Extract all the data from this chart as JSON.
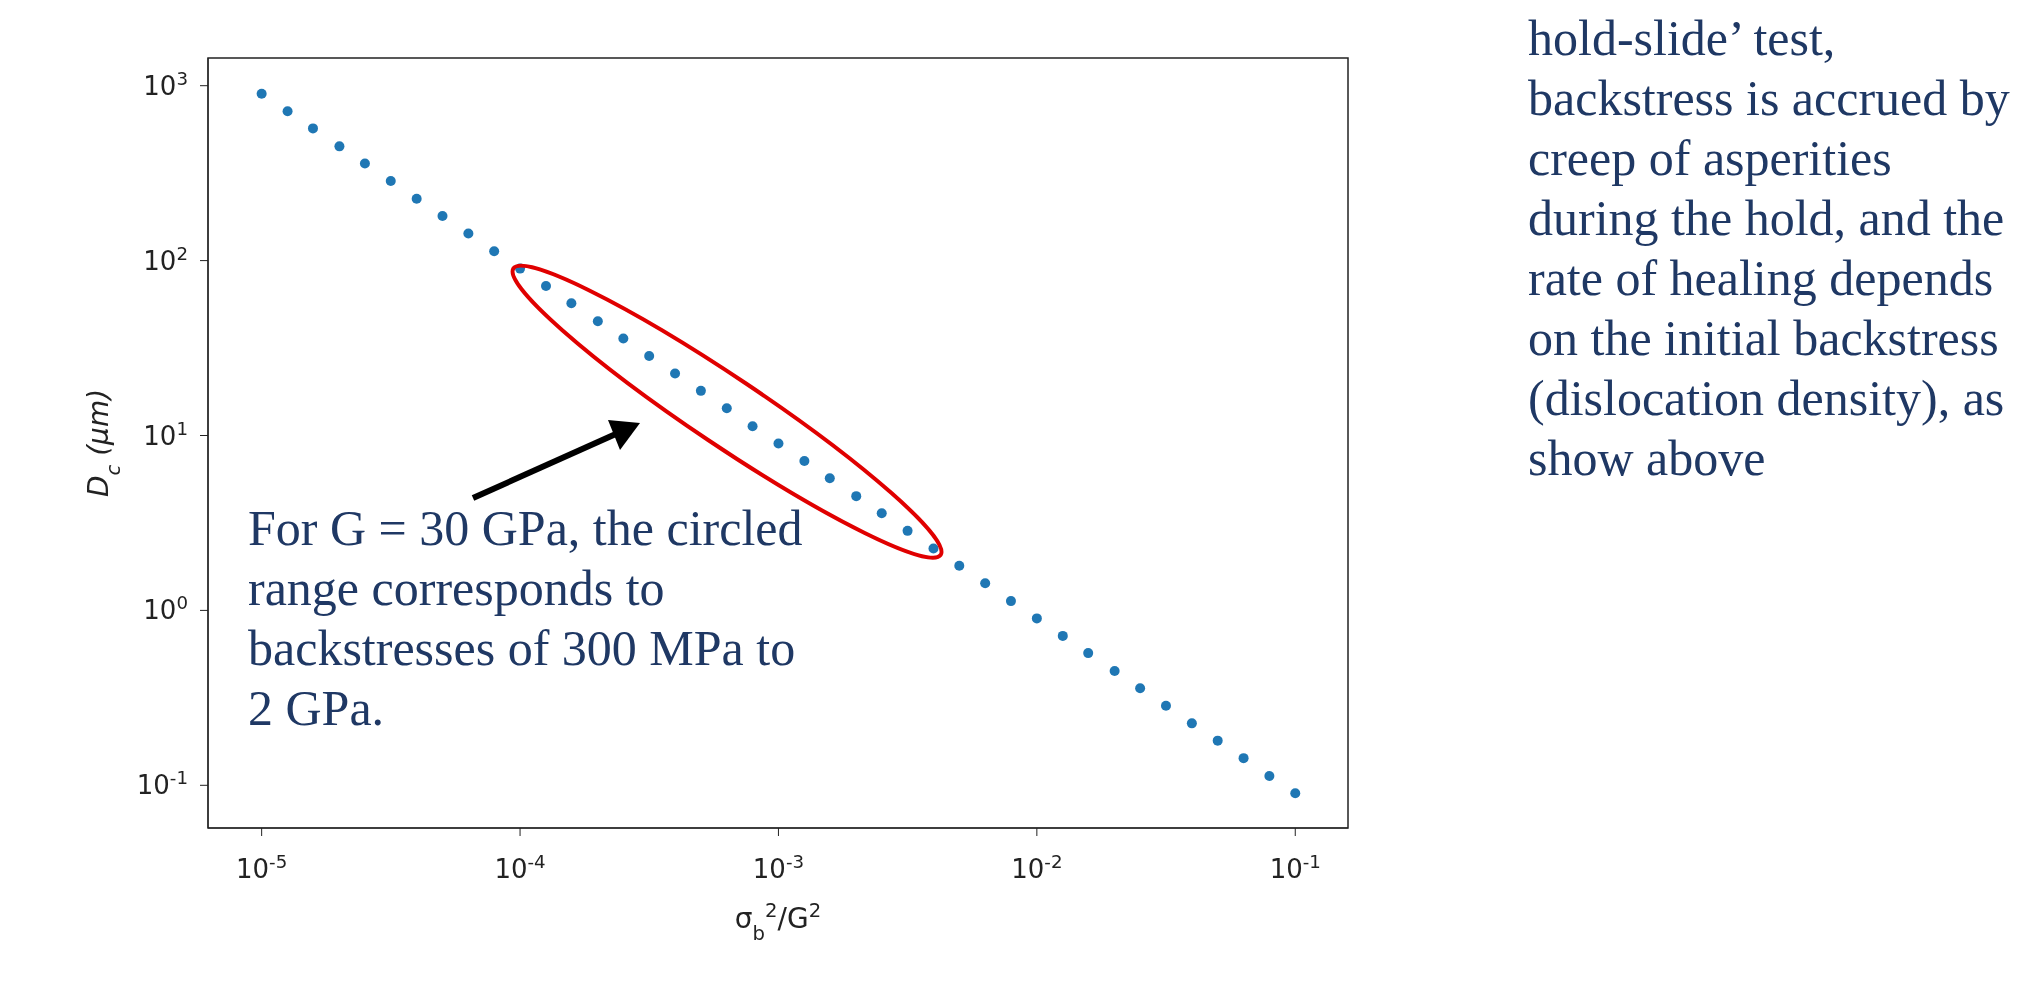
{
  "chart_data": {
    "type": "scatter",
    "xlabel": "σ$_{b}$$^{2}$/G$^{2}$",
    "ylabel": "D$_{c}$ (μm)",
    "log": "xy",
    "marker": "circle",
    "xlim": [
      6.2e-06,
      0.16
    ],
    "ylim": [
      0.057,
      1440
    ],
    "xticks": [
      {
        "value": 1e-05,
        "label": "10$^{-5}$"
      },
      {
        "value": 0.0001,
        "label": "10$^{-4}$"
      },
      {
        "value": 0.001,
        "label": "10$^{-3}$"
      },
      {
        "value": 0.01,
        "label": "10$^{-2}$"
      },
      {
        "value": 0.1,
        "label": "10$^{-1}$"
      }
    ],
    "yticks": [
      {
        "value": 0.1,
        "label": "10$^{-1}$"
      },
      {
        "value": 1,
        "label": "10$^{0}$"
      },
      {
        "value": 10,
        "label": "10$^{1}$"
      },
      {
        "value": 100,
        "label": "10$^{2}$"
      },
      {
        "value": 1000,
        "label": "10$^{3}$"
      }
    ],
    "series": [
      {
        "color": "#1f77b4",
        "x": [
          1e-05,
          1.26e-05,
          1.58e-05,
          2e-05,
          2.51e-05,
          3.16e-05,
          3.98e-05,
          5.01e-05,
          6.31e-05,
          7.94e-05,
          0.0001,
          0.000126,
          0.000158,
          0.0002,
          0.000251,
          0.000316,
          0.000398,
          0.000501,
          0.000631,
          0.000794,
          0.001,
          0.00126,
          0.00158,
          0.002,
          0.00251,
          0.00316,
          0.00398,
          0.00501,
          0.00631,
          0.00794,
          0.01,
          0.0126,
          0.0158,
          0.02,
          0.0251,
          0.0316,
          0.0398,
          0.0501,
          0.0631,
          0.0794,
          0.1
        ],
        "values": [
          900,
          715,
          570,
          450,
          359,
          285,
          226,
          180,
          143,
          113,
          90,
          71.5,
          57,
          45,
          35.9,
          28.5,
          22.6,
          18,
          14.3,
          11.3,
          9,
          7.15,
          5.7,
          4.5,
          3.59,
          2.85,
          2.26,
          1.8,
          1.43,
          1.13,
          0.9,
          0.715,
          0.57,
          0.45,
          0.359,
          0.285,
          0.226,
          0.18,
          0.143,
          0.113,
          0.09
        ]
      }
    ],
    "annotations": [
      "For G = 30 GPa, the circled range corresponds to backstresses of 300 MPa to 2 GPa.",
      "hold-slide’ test, backstress is accrued by creep of asperities during the hold, and the rate of healing depends on the initial backstress (dislocation density), as show above"
    ]
  }
}
